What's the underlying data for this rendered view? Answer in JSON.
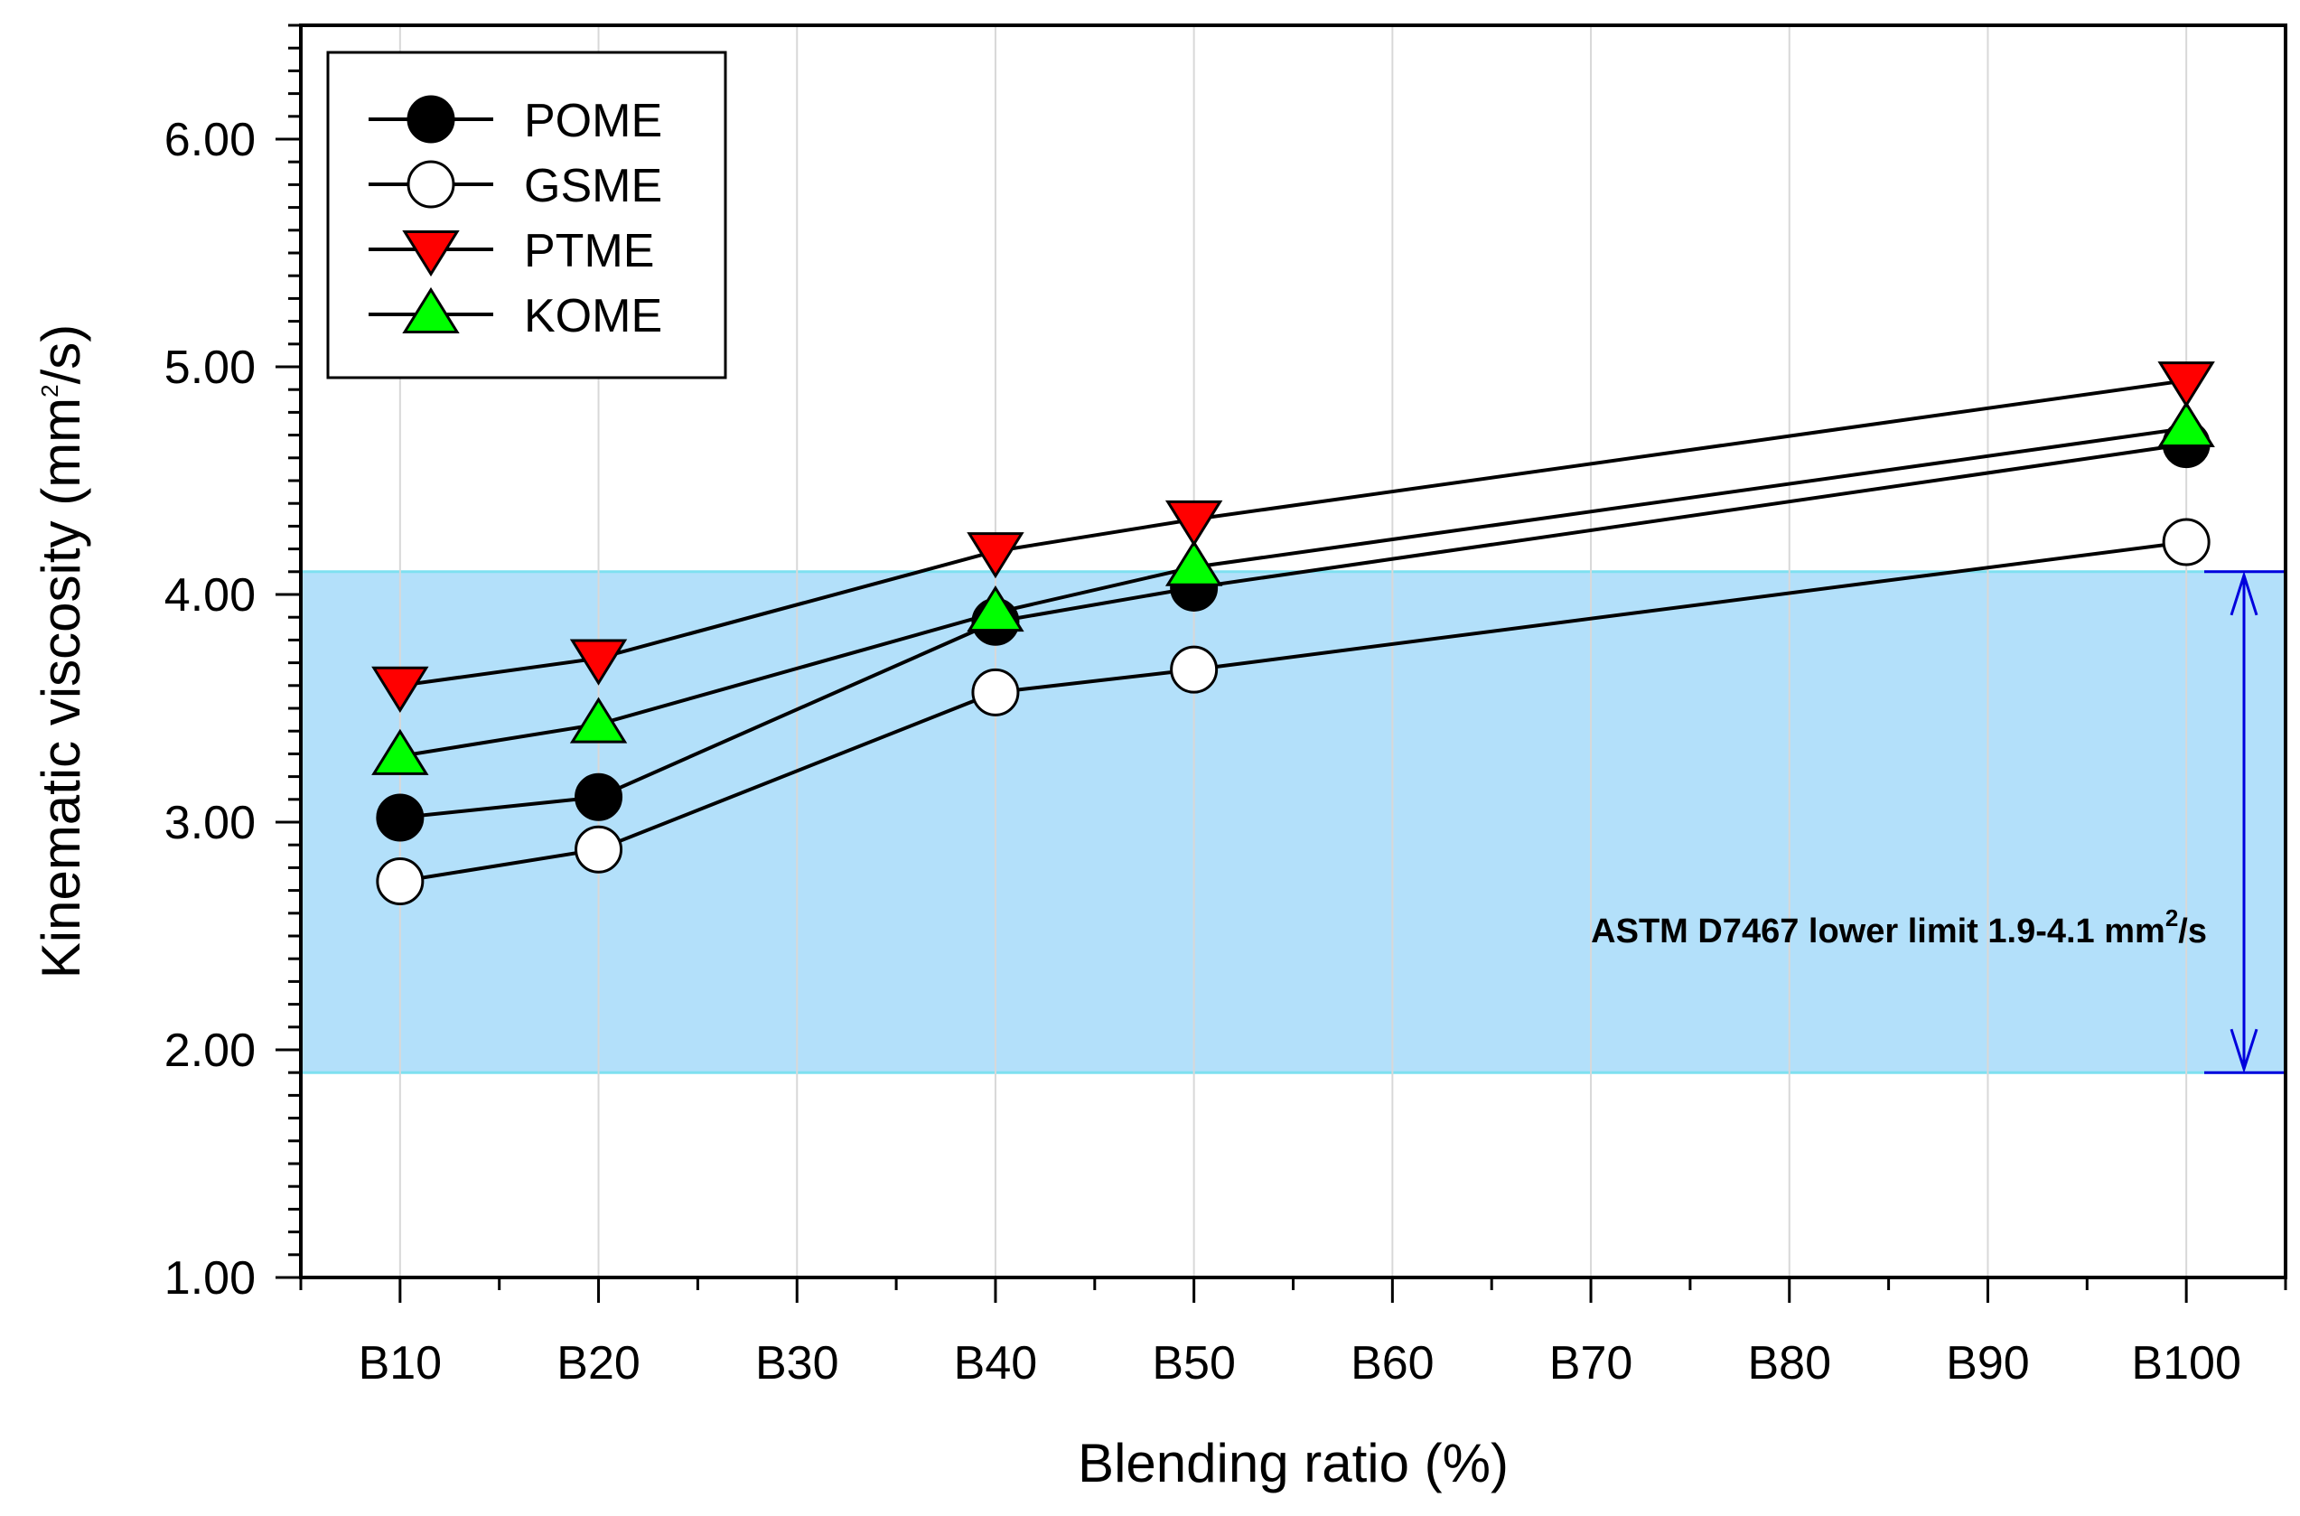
{
  "chart_data": {
    "type": "line",
    "title": "",
    "xlabel": "Blending ratio (%)",
    "ylabel": "Kinematic viscosity (mm2/s)",
    "ylabel_parts": {
      "pre": "Kinematic viscosity (mm",
      "sup": "2",
      "post": "/s)"
    },
    "categories": [
      "B10",
      "B20",
      "B30",
      "B40",
      "B50",
      "B60",
      "B70",
      "B80",
      "B90",
      "B100"
    ],
    "x_values": [
      10,
      20,
      30,
      40,
      50,
      60,
      70,
      80,
      90,
      100
    ],
    "xlim": [
      5,
      105
    ],
    "ylim": [
      1.0,
      6.5
    ],
    "yticks": [
      "1.00",
      "2.00",
      "3.00",
      "4.00",
      "5.00",
      "6.00"
    ],
    "grid": "vertical",
    "legend_position": "top-left",
    "series": [
      {
        "name": "POME",
        "marker": "circle",
        "fill": "#000000",
        "x": [
          10,
          20,
          40,
          50,
          100
        ],
        "values": [
          3.02,
          3.11,
          3.88,
          4.03,
          4.66
        ]
      },
      {
        "name": "GSME",
        "marker": "circle",
        "fill": "#ffffff",
        "x": [
          10,
          20,
          40,
          50,
          100
        ],
        "values": [
          2.74,
          2.88,
          3.57,
          3.67,
          4.23
        ]
      },
      {
        "name": "PTME",
        "marker": "triangle-down",
        "fill": "#ff0000",
        "x": [
          10,
          20,
          40,
          50,
          100
        ],
        "values": [
          3.6,
          3.72,
          4.19,
          4.33,
          4.94
        ]
      },
      {
        "name": "KOME",
        "marker": "triangle-up",
        "fill": "#00ff00",
        "x": [
          10,
          20,
          40,
          50,
          100
        ],
        "values": [
          3.29,
          3.43,
          3.92,
          4.12,
          4.73
        ]
      }
    ],
    "band": {
      "y_min": 1.9,
      "y_max": 4.1,
      "color": "#b3e0fa",
      "edge_color": "#7ee0f0",
      "label_pre": "ASTM D7467 lower limit 1.9-4.1 mm",
      "label_sup": "2",
      "label_post": "/s",
      "arrow_color": "#0000dd"
    }
  }
}
